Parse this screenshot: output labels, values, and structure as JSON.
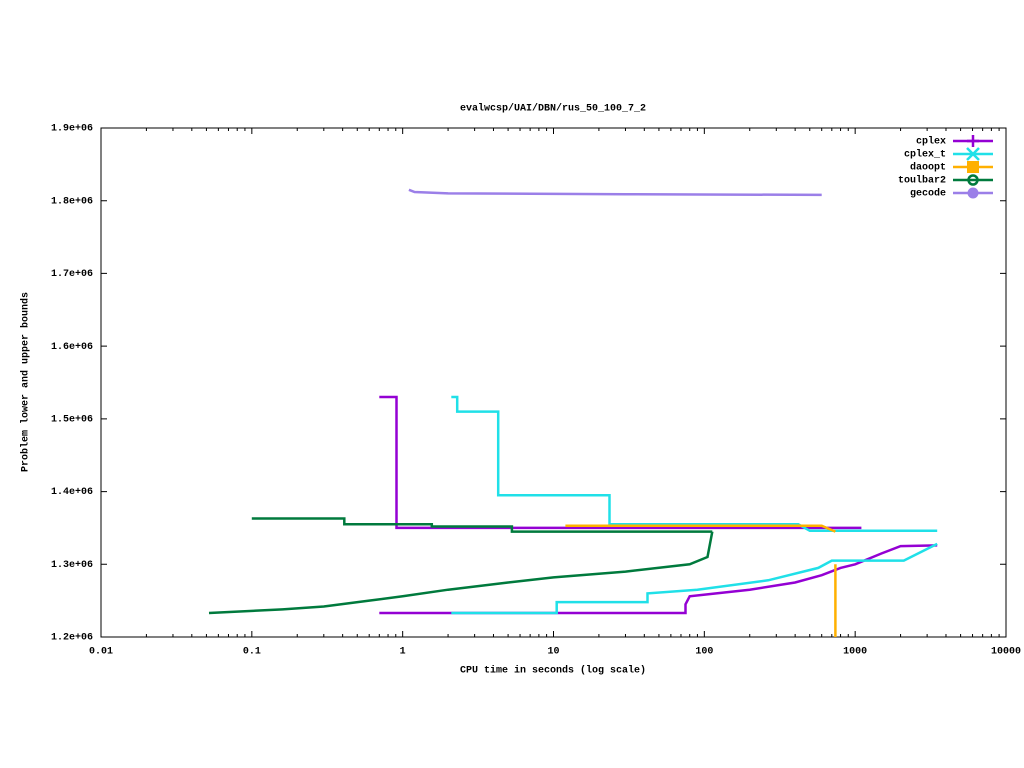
{
  "chart_data": {
    "type": "line",
    "title": "evalwcsp/UAI/DBN/rus_50_100_7_2",
    "xlabel": "CPU time in seconds (log scale)",
    "ylabel": "Problem lower and upper bounds",
    "xlog": true,
    "xlim": [
      0.01,
      10000
    ],
    "xticks": [
      0.01,
      0.1,
      1,
      10,
      100,
      1000,
      10000
    ],
    "ylim": [
      1200000,
      1900000
    ],
    "yticks": [
      {
        "value": 1200000,
        "label": "1.2e+06"
      },
      {
        "value": 1300000,
        "label": "1.3e+06"
      },
      {
        "value": 1400000,
        "label": "1.4e+06"
      },
      {
        "value": 1500000,
        "label": "1.5e+06"
      },
      {
        "value": 1600000,
        "label": "1.6e+06"
      },
      {
        "value": 1700000,
        "label": "1.7e+06"
      },
      {
        "value": 1800000,
        "label": "1.8e+06"
      },
      {
        "value": 1900000,
        "label": "1.9e+06"
      }
    ],
    "legend": "top-right",
    "series": [
      {
        "name": "cplex",
        "color": "#9400d3",
        "marker": "plus",
        "x": [
          0.7,
          0.91,
          0.91,
          1100,
          null,
          0.7,
          75,
          75,
          80,
          120,
          200,
          400,
          600,
          800,
          1000,
          1500,
          2000,
          3500
        ],
        "values": [
          1530000,
          1530000,
          1350000,
          1350000,
          null,
          1233000,
          1233000,
          1245000,
          1256000,
          1260000,
          1265000,
          1275000,
          1285000,
          1295000,
          1300000,
          1315000,
          1325000,
          1326000
        ]
      },
      {
        "name": "cplex_t",
        "color": "#20e0e8",
        "marker": "cross",
        "x": [
          2.1,
          2.3,
          2.3,
          4.3,
          4.3,
          23.5,
          23.5,
          420,
          500,
          3500,
          null,
          2.1,
          10.5,
          10.5,
          42,
          42,
          90,
          265,
          570,
          700,
          2100,
          3500
        ],
        "values": [
          1530000,
          1530000,
          1510000,
          1510000,
          1395000,
          1395000,
          1355000,
          1355000,
          1346000,
          1346000,
          null,
          1233000,
          1233000,
          1248000,
          1248000,
          1260000,
          1265000,
          1278000,
          1295000,
          1305000,
          1305000,
          1328000
        ]
      },
      {
        "name": "daoopt",
        "color": "#ffb000",
        "marker": "square",
        "x": [
          12,
          600,
          740,
          null,
          740,
          740
        ],
        "values": [
          1353000,
          1353000,
          1345000,
          null,
          1300000,
          1200000
        ]
      },
      {
        "name": "toulbar2",
        "color": "#007a3d",
        "marker": "circle",
        "x": [
          0.1,
          0.41,
          0.41,
          1.56,
          1.56,
          5.3,
          5.3,
          113,
          null,
          0.052,
          0.16,
          0.3,
          0.6,
          1,
          2,
          5,
          10,
          30,
          80,
          105,
          113
        ],
        "values": [
          1363000,
          1363000,
          1355000,
          1355000,
          1352000,
          1352000,
          1345000,
          1345000,
          null,
          1233000,
          1238000,
          1242000,
          1250000,
          1256000,
          1265000,
          1275000,
          1282000,
          1290000,
          1300000,
          1310000,
          1345000
        ]
      },
      {
        "name": "gecode",
        "color": "#9b7fe8",
        "marker": "dot",
        "x": [
          1.1,
          1.2,
          2,
          30,
          600
        ],
        "values": [
          1815000,
          1812000,
          1810000,
          1809000,
          1808000
        ]
      }
    ]
  }
}
